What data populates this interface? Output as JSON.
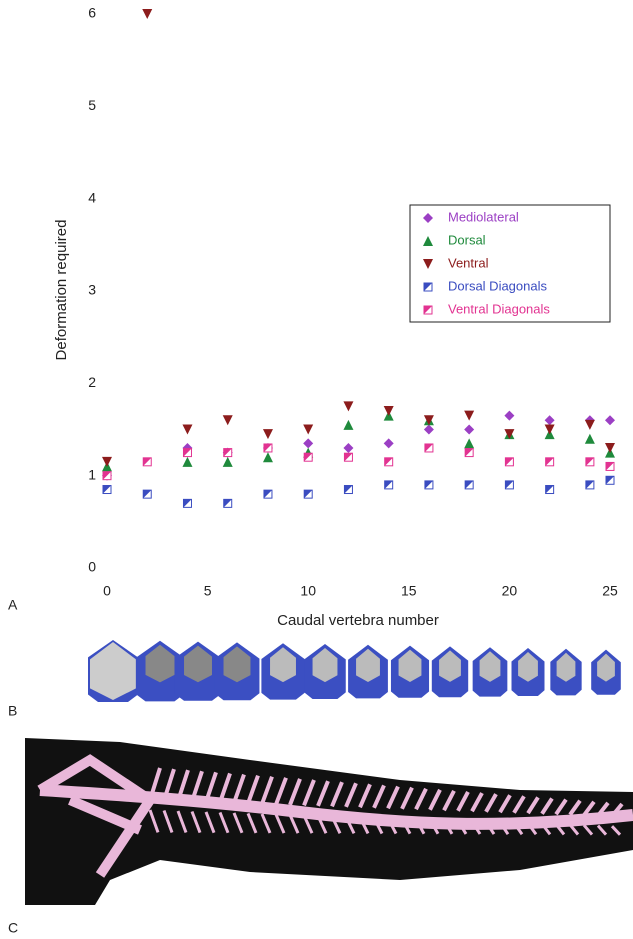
{
  "chart_data": {
    "type": "scatter",
    "y_label": "Deformation required",
    "x_label": "Caudal vertebra number",
    "x": [
      0,
      2,
      4,
      6,
      8,
      10,
      12,
      14,
      16,
      18,
      20,
      22,
      24,
      25
    ],
    "xlim": [
      0,
      25
    ],
    "xticks": [
      0,
      5,
      10,
      15,
      20,
      25
    ],
    "ylim": [
      0,
      6
    ],
    "yticks": [
      0,
      1,
      2,
      3,
      4,
      5,
      6
    ],
    "grid": false,
    "legend": "right",
    "series": [
      {
        "name": "Mediolateral",
        "color": "#9b3fc4",
        "marker": "diamond",
        "values": [
          1.0,
          null,
          1.3,
          1.25,
          1.3,
          1.35,
          1.3,
          1.35,
          1.5,
          1.5,
          1.65,
          1.6,
          1.6,
          1.6
        ]
      },
      {
        "name": "Dorsal",
        "color": "#1f8a3c",
        "marker": "triangle-up",
        "values": [
          1.1,
          null,
          1.15,
          1.15,
          1.2,
          1.25,
          1.55,
          1.65,
          1.6,
          1.35,
          1.45,
          1.45,
          1.4,
          1.25
        ]
      },
      {
        "name": "Ventral",
        "color": "#8c1c1c",
        "marker": "triangle-down",
        "values": [
          1.15,
          6,
          1.5,
          1.6,
          1.45,
          1.5,
          1.75,
          1.7,
          1.6,
          1.65,
          1.45,
          1.5,
          1.55,
          1.3
        ]
      },
      {
        "name": "Dorsal Diagonals",
        "color": "#3a4cc0",
        "marker": "half-square",
        "values": [
          0.85,
          0.8,
          0.7,
          0.7,
          0.8,
          0.8,
          0.85,
          0.9,
          0.9,
          0.9,
          0.9,
          0.85,
          0.9,
          0.95
        ]
      },
      {
        "name": "Ventral Diagonals",
        "color": "#e23391",
        "marker": "half-square",
        "values": [
          1.0,
          1.15,
          1.25,
          1.25,
          1.3,
          1.2,
          1.2,
          1.15,
          1.3,
          1.25,
          1.15,
          1.15,
          1.15,
          1.1
        ]
      }
    ]
  },
  "panel_labels": [
    "A",
    "B",
    "C"
  ]
}
